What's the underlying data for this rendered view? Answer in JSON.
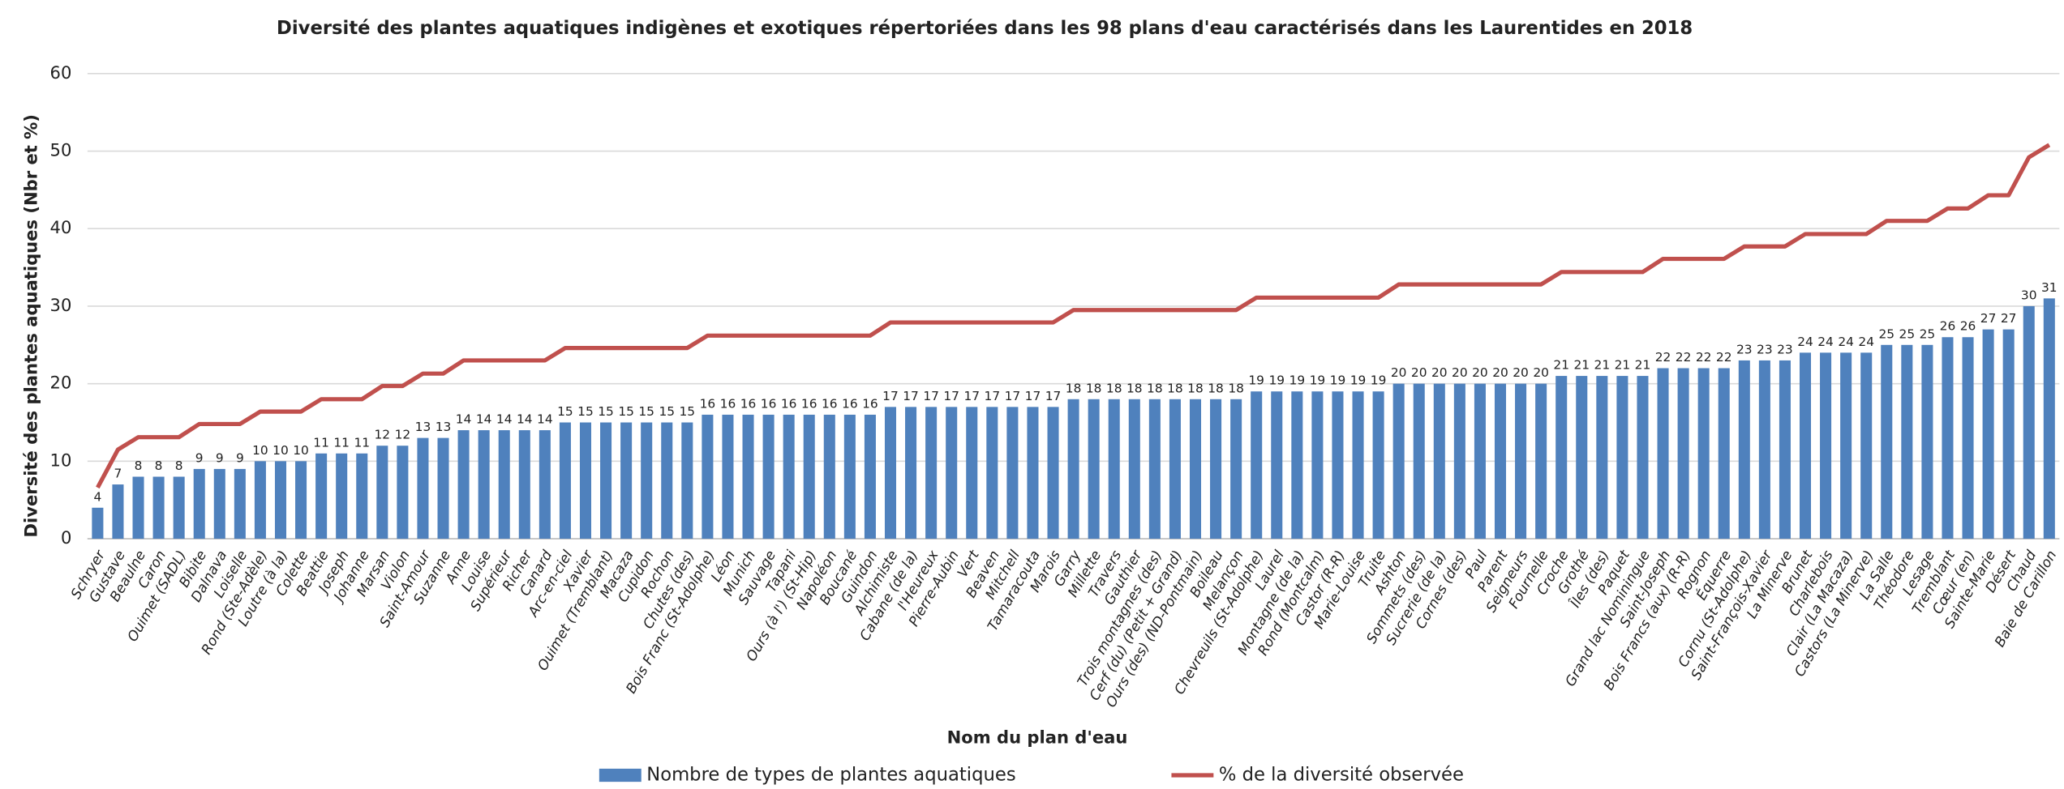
{
  "chart_data": {
    "type": "bar",
    "title": "Diversité des plantes aquatiques indigènes et exotiques répertoriées dans les 98 plans d'eau caractérisés dans les Laurentides en 2018",
    "y_label": "Diversité des plantes aquatiques (Nbr et %)",
    "x_label": "Nom du plan d'eau",
    "categories": [
      "Schryer",
      "Gustave",
      "Beaulne",
      "Caron",
      "Ouimet (SADL)",
      "Bibite",
      "Dalnava",
      "Loiselle",
      "Rond (Ste-Adèle)",
      "Loutre (à la)",
      "Colette",
      "Beattie",
      "Joseph",
      "Johanne",
      "Marsan",
      "Violon",
      "Saint-Amour",
      "Suzanne",
      "Anne",
      "Louise",
      "Supérieur",
      "Richer",
      "Canard",
      "Arc-en-ciel",
      "Xavier",
      "Ouimet (Tremblant)",
      "Macaza",
      "Cupidon",
      "Rochon",
      "Chutes (des)",
      "Bois Franc (St-Adolphe)",
      "Léon",
      "Munich",
      "Sauvage",
      "Tapani",
      "Ours (à l') (St-Hip)",
      "Napoléon",
      "Boucané",
      "Guindon",
      "Alchimiste",
      "Cabane (de la)",
      "l'Heureux",
      "Pierre-Aubin",
      "Vert",
      "Beaven",
      "Mitchell",
      "Tamaracouta",
      "Marois",
      "Garry",
      "Millette",
      "Travers",
      "Gauthier",
      "Trois montagnes (des)",
      "Cerf (du) (Petit + Grand)",
      "Ours (des) (ND-Pontmain)",
      "Boileau",
      "Melançon",
      "Chevreuils (St-Adolphe)",
      "Laurel",
      "Montagne (de la)",
      "Rond (Montcalm)",
      "Castor (R-R)",
      "Marie-Louise",
      "Truite",
      "Ashton",
      "Sommets (des)",
      "Sucrerie (de la)",
      "Cornes (des)",
      "Paul",
      "Parent",
      "Seigneurs",
      "Fournelle",
      "Croche",
      "Grothé",
      "Îles (des)",
      "Paquet",
      "Grand lac Nominingue",
      "Saint-Joseph",
      "Bois Francs (aux) (R-R)",
      "Rognon",
      "Équerre",
      "Cornu (St-Adolphe)",
      "Saint-François-Xavier",
      "La Minerve",
      "Brunet",
      "Charlebois",
      "Clair (La Macaza)",
      "Castors (La Minerve)",
      "La Salle",
      "Théodore",
      "Lesage",
      "Tremblant",
      "Cœur (en)",
      "Sainte-Marie",
      "Désert",
      "Chaud",
      "Baie de Carillon"
    ],
    "series": [
      {
        "name": "Nombre de types de plantes aquatiques",
        "type": "bar",
        "color": "#4f81bd",
        "values": [
          4,
          7,
          8,
          8,
          8,
          9,
          9,
          9,
          10,
          10,
          10,
          11,
          11,
          11,
          12,
          12,
          13,
          13,
          14,
          14,
          14,
          14,
          14,
          15,
          15,
          15,
          15,
          15,
          15,
          15,
          16,
          16,
          16,
          16,
          16,
          16,
          16,
          16,
          16,
          17,
          17,
          17,
          17,
          17,
          17,
          17,
          17,
          17,
          18,
          18,
          18,
          18,
          18,
          18,
          18,
          18,
          18,
          19,
          19,
          19,
          19,
          19,
          19,
          19,
          20,
          20,
          20,
          20,
          20,
          20,
          20,
          20,
          21,
          21,
          21,
          21,
          21,
          22,
          22,
          22,
          22,
          23,
          23,
          23,
          24,
          24,
          24,
          24,
          25,
          25,
          25,
          26,
          26,
          27,
          27,
          30,
          31
        ]
      },
      {
        "name": "% de la diversité observée",
        "type": "line",
        "color": "#c0504d",
        "values": [
          6.6,
          11.5,
          13.1,
          13.1,
          13.1,
          14.8,
          14.8,
          14.8,
          16.4,
          16.4,
          16.4,
          18.0,
          18.0,
          18.0,
          19.7,
          19.7,
          21.3,
          21.3,
          23.0,
          23.0,
          23.0,
          23.0,
          23.0,
          24.6,
          24.6,
          24.6,
          24.6,
          24.6,
          24.6,
          24.6,
          26.2,
          26.2,
          26.2,
          26.2,
          26.2,
          26.2,
          26.2,
          26.2,
          26.2,
          27.9,
          27.9,
          27.9,
          27.9,
          27.9,
          27.9,
          27.9,
          27.9,
          27.9,
          29.5,
          29.5,
          29.5,
          29.5,
          29.5,
          29.5,
          29.5,
          29.5,
          29.5,
          31.1,
          31.1,
          31.1,
          31.1,
          31.1,
          31.1,
          31.1,
          32.8,
          32.8,
          32.8,
          32.8,
          32.8,
          32.8,
          32.8,
          32.8,
          34.4,
          34.4,
          34.4,
          34.4,
          34.4,
          36.1,
          36.1,
          36.1,
          36.1,
          37.7,
          37.7,
          37.7,
          39.3,
          39.3,
          39.3,
          39.3,
          41.0,
          41.0,
          41.0,
          42.6,
          42.6,
          44.3,
          44.3,
          49.2,
          50.8
        ]
      }
    ],
    "ylim": [
      0,
      60
    ],
    "yticks": [
      0,
      10,
      20,
      30,
      40,
      50,
      60
    ],
    "grid": true,
    "legend": "bottom"
  }
}
